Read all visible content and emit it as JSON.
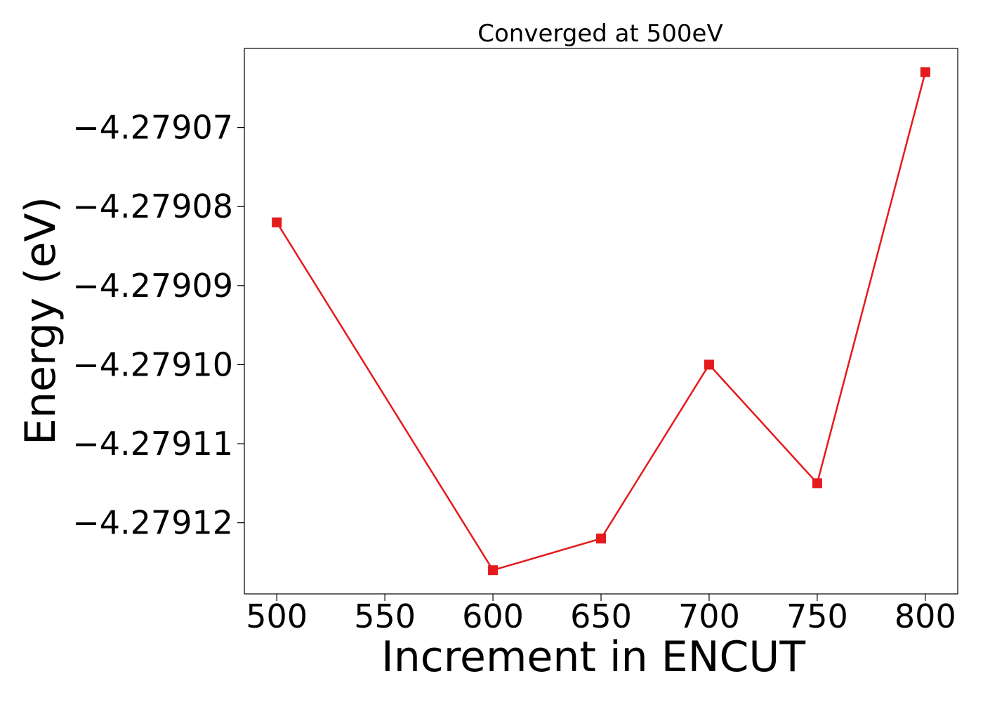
{
  "chart_data": {
    "type": "line",
    "title": "Converged at 500eV",
    "xlabel": "Increment in ENCUT",
    "ylabel": "Energy (eV)",
    "x": [
      500,
      600,
      650,
      700,
      750,
      800
    ],
    "series": [
      {
        "values": [
          -4.279082,
          -4.279126,
          -4.279122,
          -4.2791,
          -4.279115,
          -4.279063
        ],
        "color": "#e41a1c",
        "marker": "square"
      }
    ],
    "xlim": [
      485,
      815
    ],
    "ylim": [
      -4.279129,
      -4.27906
    ],
    "xticks": [
      500,
      550,
      600,
      650,
      700,
      750,
      800
    ],
    "xtick_labels": [
      "500",
      "550",
      "600",
      "650",
      "700",
      "750",
      "800"
    ],
    "yticks": [
      -4.27907,
      -4.27908,
      -4.27909,
      -4.2791,
      -4.27911,
      -4.27912
    ],
    "ytick_labels": [
      "−4.27907",
      "−4.27908",
      "−4.27909",
      "−4.27910",
      "−4.27911",
      "−4.27912"
    ],
    "grid": false,
    "legend": false
  }
}
